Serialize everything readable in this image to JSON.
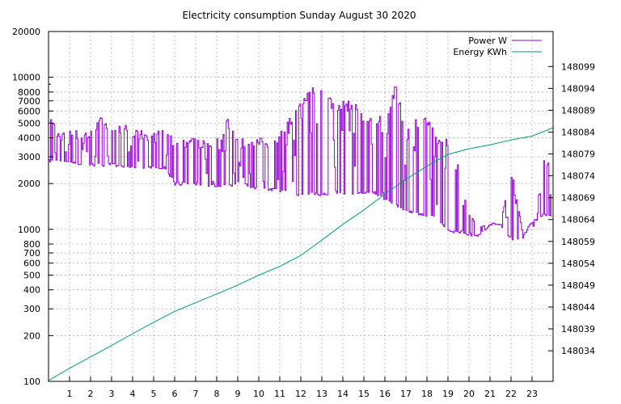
{
  "chart_data": {
    "type": "line",
    "title": "Electricity consumption Sunday August 30 2020",
    "xlabel": "",
    "ylabel": "",
    "y2label": "",
    "x_ticks": [
      "1",
      "2",
      "3",
      "4",
      "5",
      "6",
      "7",
      "8",
      "9",
      "10",
      "11",
      "12",
      "13",
      "14",
      "15",
      "16",
      "17",
      "18",
      "19",
      "20",
      "21",
      "22",
      "23"
    ],
    "xlim": [
      0,
      24
    ],
    "y_scale": "log",
    "ylim": [
      100,
      20000
    ],
    "y_ticks": [
      100,
      200,
      300,
      400,
      500,
      600,
      700,
      800,
      1000,
      2000,
      3000,
      4000,
      5000,
      6000,
      7000,
      8000,
      10000,
      20000
    ],
    "y2lim": [
      148027,
      148107
    ],
    "y2_ticks": [
      148034,
      148039,
      148044,
      148049,
      148054,
      148059,
      148064,
      148069,
      148074,
      148079,
      148084,
      148089,
      148094,
      148099
    ],
    "grid": true,
    "legend_position": "top-right",
    "colors": {
      "power": "#9400d3",
      "energy": "#009e73"
    },
    "series": [
      {
        "name": "Power W",
        "axis": "left",
        "hours": [
          0.0,
          0.5,
          1.0,
          1.5,
          2.0,
          2.5,
          3.0,
          3.5,
          4.0,
          4.5,
          5.0,
          5.5,
          6.0,
          6.5,
          7.0,
          7.5,
          8.0,
          8.5,
          9.0,
          9.5,
          10.0,
          10.5,
          11.0,
          11.5,
          12.0,
          12.5,
          13.0,
          13.5,
          14.0,
          14.5,
          15.0,
          15.5,
          16.0,
          16.5,
          17.0,
          17.5,
          18.0,
          18.5,
          19.0,
          19.5,
          20.0,
          20.5,
          21.0,
          21.5,
          22.0,
          22.5,
          23.0,
          23.5,
          23.9
        ],
        "low": [
          2750,
          2750,
          2750,
          2600,
          2600,
          2600,
          2600,
          2500,
          2500,
          2500,
          2500,
          2500,
          1950,
          1950,
          1950,
          1900,
          1900,
          1900,
          1900,
          1900,
          1800,
          1800,
          1750,
          1700,
          1650,
          1700,
          1650,
          1700,
          1700,
          1700,
          1700,
          1700,
          1550,
          1400,
          1300,
          1250,
          1200,
          1150,
          950,
          950,
          900,
          900,
          1050,
          1050,
          850,
          850,
          1100,
          1200,
          1200
        ],
        "high": [
          6000,
          4500,
          4500,
          4500,
          4500,
          6000,
          4500,
          5200,
          4500,
          4500,
          4500,
          4500,
          4000,
          4000,
          4000,
          4000,
          4000,
          5500,
          4000,
          4000,
          4000,
          4000,
          4500,
          5500,
          7000,
          9000,
          9000,
          7000,
          7000,
          7000,
          5500,
          5500,
          6000,
          9000,
          4500,
          5500,
          5500,
          4000,
          4000,
          2700,
          1300,
          1100,
          1100,
          1200,
          2500,
          1100,
          1100,
          2900,
          3200
        ]
      },
      {
        "name": "Energy KWh",
        "axis": "right",
        "x": [
          0,
          1,
          2,
          3,
          4,
          5,
          6,
          7,
          8,
          9,
          10,
          11,
          12,
          13,
          14,
          15,
          16,
          17,
          18,
          19,
          20,
          21,
          22,
          23,
          24
        ],
        "y": [
          148027.2,
          148030.0,
          148032.6,
          148035.2,
          148037.9,
          148040.5,
          148043.0,
          148045.0,
          148047.0,
          148049.0,
          148051.3,
          148053.3,
          148055.8,
          148059.3,
          148062.9,
          148066.2,
          148069.8,
          148073.2,
          148076.2,
          148078.9,
          148080.2,
          148081.1,
          148082.2,
          148083.1,
          148085.0
        ]
      }
    ]
  }
}
